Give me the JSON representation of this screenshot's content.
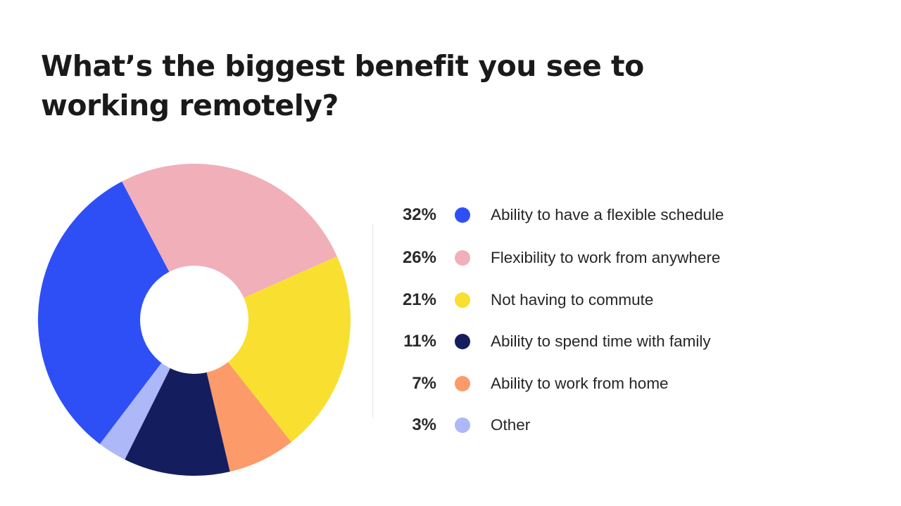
{
  "chart_data": {
    "type": "pie",
    "title": "What’s the biggest benefit you see to working remotely?",
    "donut": true,
    "legend_placement": "right",
    "slices": [
      {
        "label": "Ability to have a flexible schedule",
        "value": 32,
        "value_label": "32%",
        "color": "#2f4ff6"
      },
      {
        "label": "Flexibility to work from anywhere",
        "value": 26,
        "value_label": "26%",
        "color": "#f0afb9"
      },
      {
        "label": "Not having to commute",
        "value": 21,
        "value_label": "21%",
        "color": "#f9df2f"
      },
      {
        "label": "Ability to spend time with family",
        "value": 11,
        "value_label": "11%",
        "color": "#141e5f"
      },
      {
        "label": "Ability to work from home",
        "value": 7,
        "value_label": "7%",
        "color": "#fd9a6a"
      },
      {
        "label": "Other",
        "value": 3,
        "value_label": "3%",
        "color": "#adb8f8"
      }
    ],
    "clockwise_order": [
      1,
      2,
      4,
      3,
      5,
      0
    ]
  }
}
